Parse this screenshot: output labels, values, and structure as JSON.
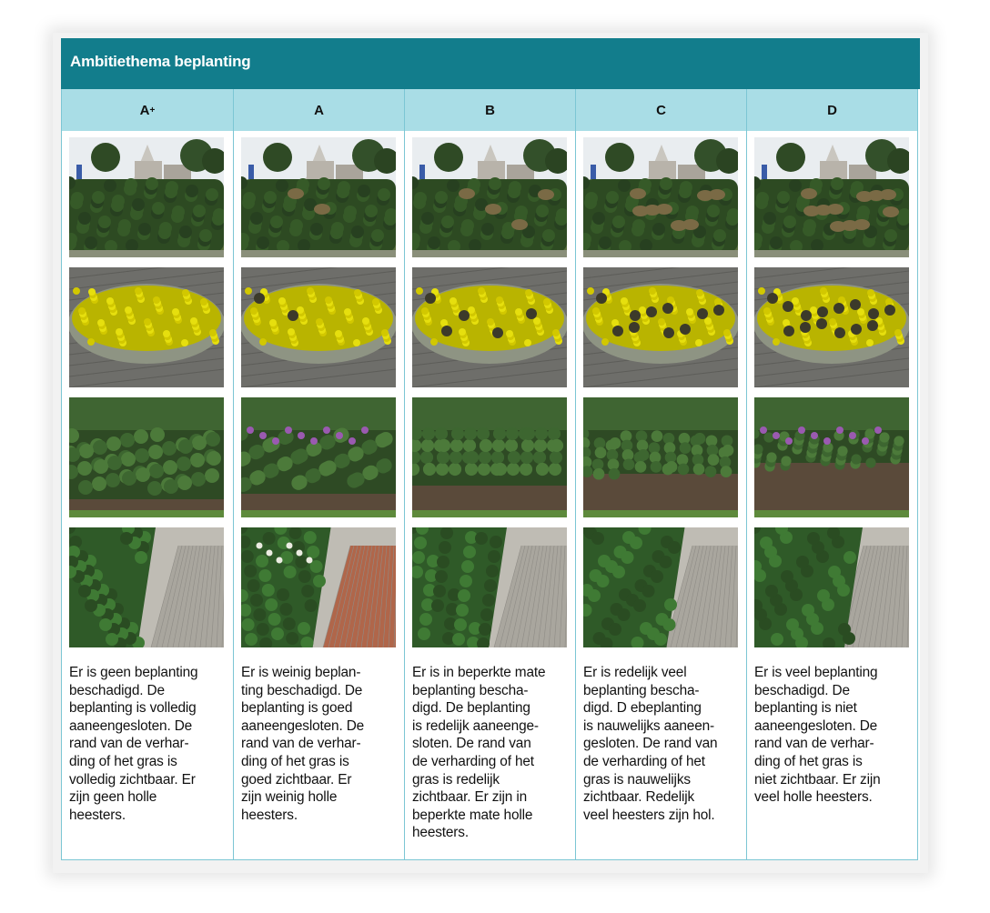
{
  "title": "Ambitiethema beplanting",
  "columns": [
    {
      "grade": "A",
      "grade_sup": "+",
      "photos": [
        "hedge-photo",
        "flowerbed-photo",
        "shrubs-photo",
        "path-shrubs-photo"
      ],
      "description": "Er is geen beplanting\nbeschadigd. De\nbeplanting is volledig\naaneengesloten. De\nrand van de verhar-\nding of het gras is\nvolledig zichtbaar. Er\nzijn geen holle\nheesters."
    },
    {
      "grade": "A",
      "grade_sup": "",
      "photos": [
        "hedge-photo",
        "flowerbed-photo",
        "shrubs-photo",
        "path-shrubs-photo"
      ],
      "description": "Er is weinig beplan-\nting beschadigd. De\nbeplanting is goed\naaneengesloten. De\nrand van de verhar-\nding of het gras is\ngoed zichtbaar. Er\nzijn weinig holle\nheesters."
    },
    {
      "grade": "B",
      "grade_sup": "",
      "photos": [
        "hedge-photo",
        "flowerbed-photo",
        "shrubs-photo",
        "path-shrubs-photo"
      ],
      "description": "Er is in beperkte mate\nbeplanting bescha-\ndigd. De beplanting\nis redelijk aaneenge-\nsloten. De rand van\nde verharding of het\ngras is redelijk\nzichtbaar. Er zijn in\nbeperkte mate holle\nheesters."
    },
    {
      "grade": "C",
      "grade_sup": "",
      "photos": [
        "hedge-photo",
        "flowerbed-photo",
        "shrubs-photo",
        "path-shrubs-photo"
      ],
      "description": "Er is redelijk veel\nbeplanting bescha-\ndigd. D ebeplanting\nis nauwelijks aaneen-\ngesloten. De rand van\nde verharding of het\ngras is nauwelijks\nzichtbaar. Redelijk\nveel heesters zijn hol."
    },
    {
      "grade": "D",
      "grade_sup": "",
      "photos": [
        "hedge-photo",
        "flowerbed-photo",
        "shrubs-photo",
        "path-shrubs-photo"
      ],
      "description": "Er is veel beplanting\nbeschadigd. De\nbeplanting is niet\naaneengesloten. De\nrand van de verhar-\nding of het gras is\nniet zichtbaar. Er zijn\nveel holle heesters."
    }
  ],
  "colors": {
    "title_bar": "#127d8c",
    "header_row": "#a9dde6",
    "border": "#7cc6d4"
  }
}
